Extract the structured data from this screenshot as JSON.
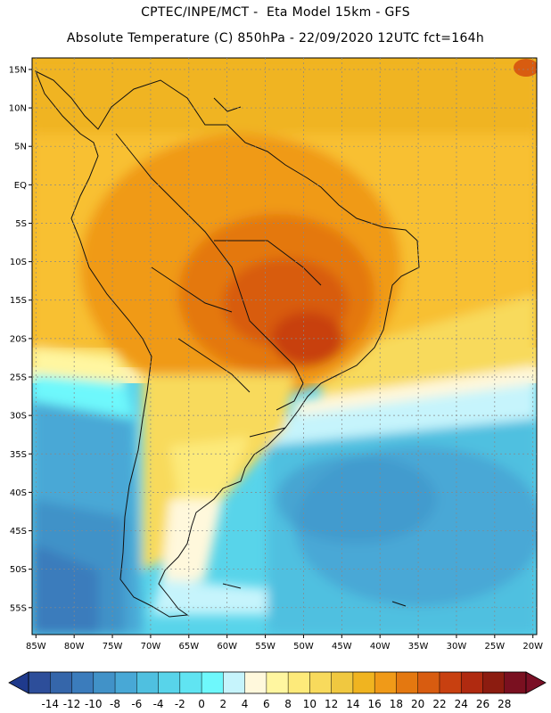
{
  "header": {
    "line1": "CPTEC/INPE/MCT -  Eta Model 15km - GFS",
    "line2": "Absolute Temperature (C) 850hPa - 22/09/2020 12UTC fct=164h"
  },
  "map": {
    "lon_range": [
      -85.5,
      -19.5
    ],
    "lat_range": [
      -58.5,
      16.5
    ],
    "lat_ticks": [
      {
        "value": 15,
        "label": "15N"
      },
      {
        "value": 10,
        "label": "10N"
      },
      {
        "value": 5,
        "label": "5N"
      },
      {
        "value": 0,
        "label": "EQ"
      },
      {
        "value": -5,
        "label": "5S"
      },
      {
        "value": -10,
        "label": "10S"
      },
      {
        "value": -15,
        "label": "15S"
      },
      {
        "value": -20,
        "label": "20S"
      },
      {
        "value": -25,
        "label": "25S"
      },
      {
        "value": -30,
        "label": "30S"
      },
      {
        "value": -35,
        "label": "35S"
      },
      {
        "value": -40,
        "label": "40S"
      },
      {
        "value": -45,
        "label": "45S"
      },
      {
        "value": -50,
        "label": "50S"
      },
      {
        "value": -55,
        "label": "55S"
      }
    ],
    "lon_ticks": [
      {
        "value": -85,
        "label": "85W"
      },
      {
        "value": -80,
        "label": "80W"
      },
      {
        "value": -75,
        "label": "75W"
      },
      {
        "value": -70,
        "label": "70W"
      },
      {
        "value": -65,
        "label": "65W"
      },
      {
        "value": -60,
        "label": "60W"
      },
      {
        "value": -55,
        "label": "55W"
      },
      {
        "value": -50,
        "label": "50W"
      },
      {
        "value": -45,
        "label": "45W"
      },
      {
        "value": -40,
        "label": "40W"
      },
      {
        "value": -35,
        "label": "35W"
      },
      {
        "value": -30,
        "label": "30W"
      },
      {
        "value": -25,
        "label": "25W"
      },
      {
        "value": -20,
        "label": "20W"
      }
    ]
  },
  "colorbar": {
    "labels": [
      "-14",
      "-12",
      "-10",
      "-8",
      "-6",
      "-4",
      "-2",
      "0",
      "2",
      "4",
      "6",
      "8",
      "10",
      "12",
      "14",
      "16",
      "18",
      "20",
      "22",
      "24",
      "26",
      "28"
    ],
    "colors": [
      "#2d4e9a",
      "#3566aa",
      "#3b7cbc",
      "#4192c8",
      "#48a8d6",
      "#4fc0e0",
      "#58d4ea",
      "#60e4f2",
      "#6ef8fc",
      "#c6f4fc",
      "#fff8dc",
      "#fff6a0",
      "#fdea7a",
      "#f8da5c",
      "#f0c840",
      "#f0b420",
      "#f09a18",
      "#e47810",
      "#d85c10",
      "#c84010",
      "#b02a10",
      "#8c1c10",
      "#7a1020"
    ],
    "low_color": "#1f3a8c",
    "high_color": "#7a0f25"
  },
  "icons": {
    "left_arrow": "colorbar-low-arrow-icon",
    "right_arrow": "colorbar-high-arrow-icon"
  }
}
